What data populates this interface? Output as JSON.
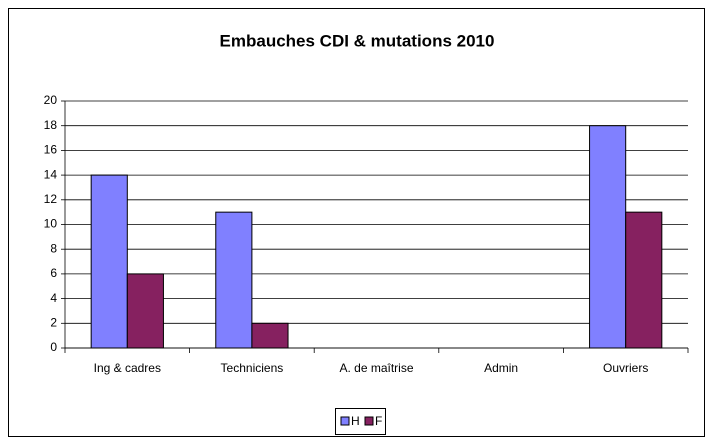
{
  "chart_data": {
    "type": "bar",
    "title": "Embauches CDI & mutations 2010",
    "categories": [
      "Ing & cadres",
      "Techniciens",
      "A. de maîtrise",
      "Admin",
      "Ouvriers"
    ],
    "series": [
      {
        "name": "H",
        "color": "#8080ff",
        "values": [
          14,
          11,
          0,
          0,
          18
        ]
      },
      {
        "name": "F",
        "color": "#862160",
        "values": [
          6,
          2,
          0,
          0,
          11
        ]
      }
    ],
    "ylim": [
      0,
      20
    ],
    "yticks": [
      0,
      2,
      4,
      6,
      8,
      10,
      12,
      14,
      16,
      18,
      20
    ],
    "grid": true,
    "legend": "bottom"
  }
}
